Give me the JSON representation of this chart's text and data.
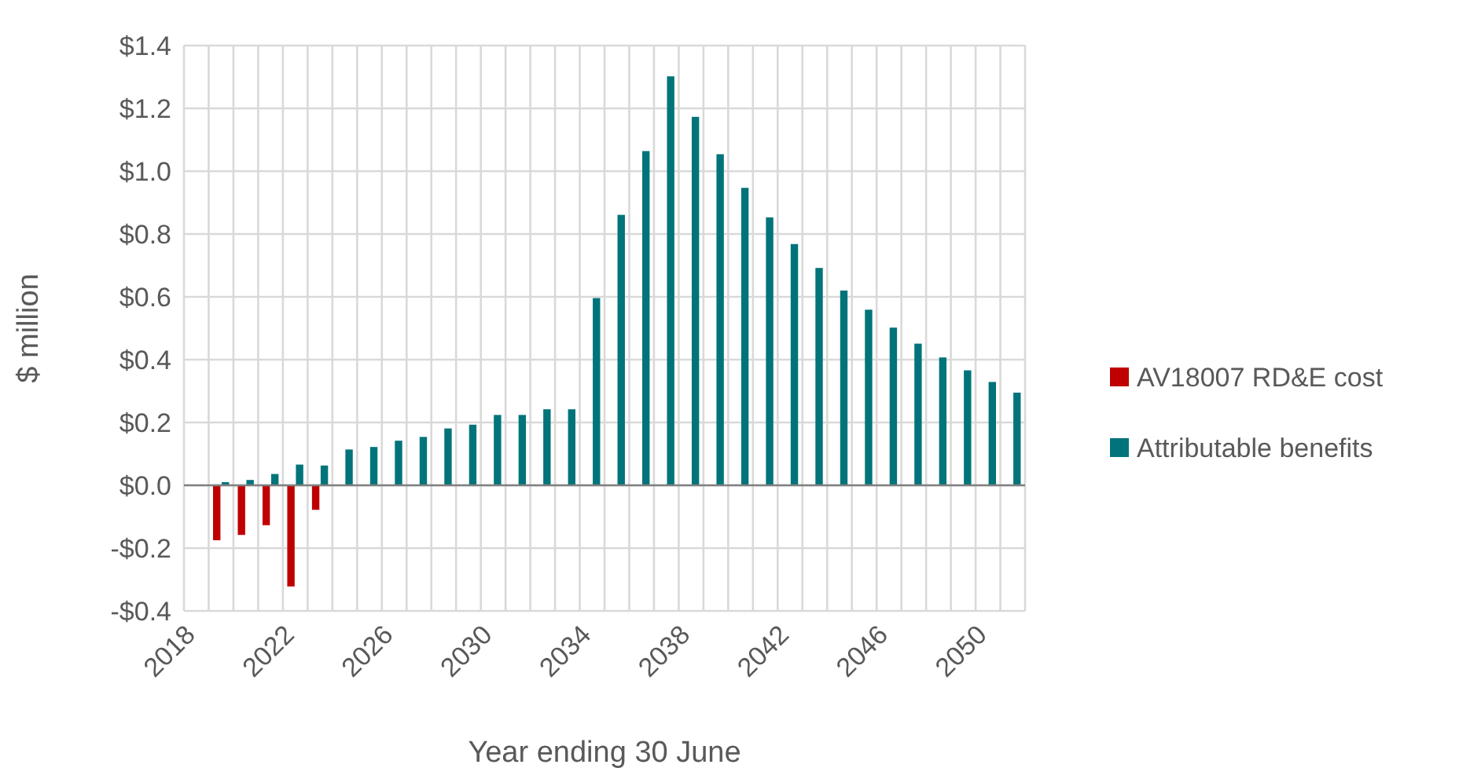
{
  "chart_data": {
    "type": "bar",
    "xlabel": "Year ending 30 June",
    "ylabel": "$ million",
    "categories": [
      "2018",
      null,
      null,
      null,
      "2022",
      null,
      null,
      null,
      "2026",
      null,
      null,
      null,
      "2030",
      null,
      null,
      null,
      "2034",
      null,
      null,
      null,
      "2038",
      null,
      null,
      null,
      "2042",
      null,
      null,
      null,
      "2046",
      null,
      null,
      null,
      "2050",
      null
    ],
    "series": [
      {
        "name": "AV18007 RD&E cost",
        "color": "#c00000",
        "values": [
          null,
          -0.175,
          -0.158,
          -0.127,
          -0.322,
          -0.078,
          null,
          null,
          null,
          null,
          null,
          null,
          null,
          null,
          null,
          null,
          null,
          null,
          null,
          null,
          null,
          null,
          null,
          null,
          null,
          null,
          null,
          null,
          null,
          null,
          null,
          null,
          null,
          null
        ]
      },
      {
        "name": "Attributable benefits",
        "color": "#00747a",
        "values": [
          null,
          0.01,
          0.017,
          0.036,
          0.066,
          0.063,
          0.114,
          0.122,
          0.142,
          0.154,
          0.181,
          0.193,
          0.224,
          0.224,
          0.242,
          0.242,
          0.596,
          0.861,
          1.064,
          1.302,
          1.173,
          1.054,
          0.947,
          0.853,
          0.768,
          0.692,
          0.62,
          0.559,
          0.502,
          0.451,
          0.407,
          0.366,
          0.329,
          0.295
        ]
      }
    ],
    "ylim": [
      -0.4,
      1.4
    ],
    "yticks": [
      {
        "value": -0.4,
        "label": "-$0.4"
      },
      {
        "value": -0.2,
        "label": "-$0.2"
      },
      {
        "value": 0,
        "label": "$0.0"
      },
      {
        "value": 0.2,
        "label": "$0.2"
      },
      {
        "value": 0.4,
        "label": "$0.4"
      },
      {
        "value": 0.6,
        "label": "$0.6"
      },
      {
        "value": 0.8,
        "label": "$0.8"
      },
      {
        "value": 1,
        "label": "$1.0"
      },
      {
        "value": 1.2,
        "label": "$1.2"
      },
      {
        "value": 1.4,
        "label": "$1.4"
      }
    ],
    "grid": true,
    "legend": "right"
  }
}
